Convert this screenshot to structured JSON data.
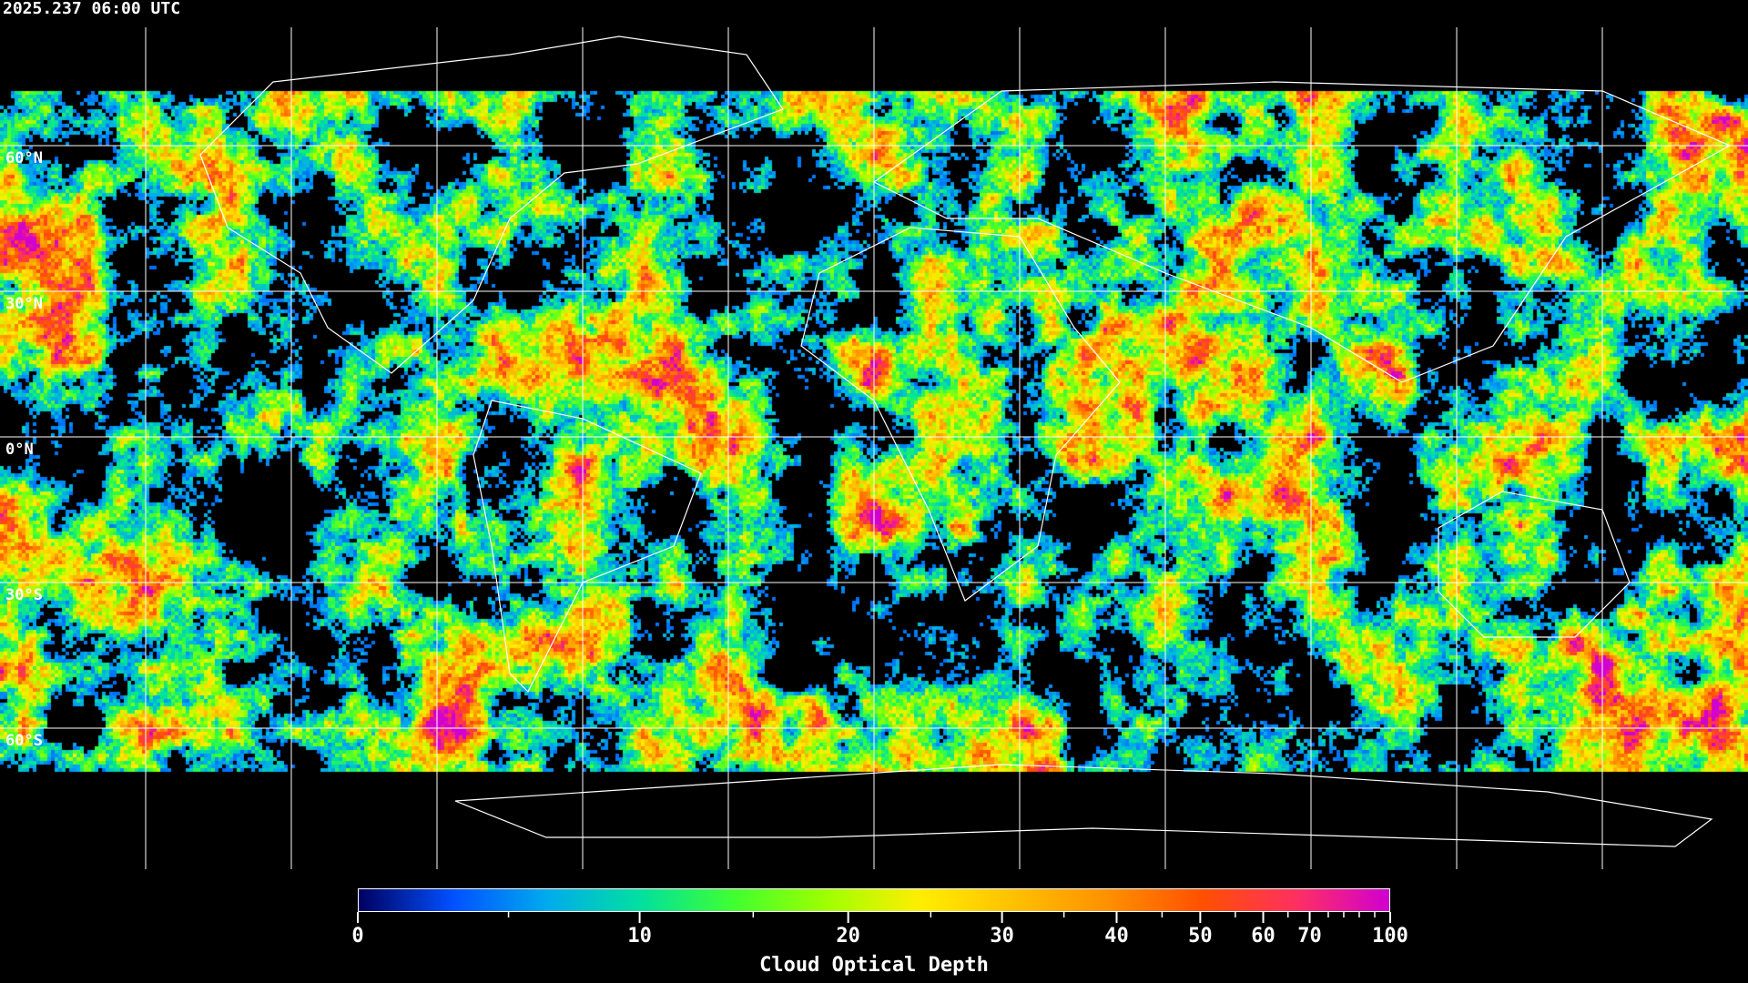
{
  "timestamp": "2025.237 06:00 UTC",
  "lat_labels": [
    "60°N",
    "30°N",
    "0°N",
    "30°S",
    "60°S"
  ],
  "colorbar": {
    "title": "Cloud Optical Depth",
    "tick_labels": [
      "0",
      "10",
      "20",
      "30",
      "40",
      "50",
      "60",
      "70",
      "100"
    ],
    "range": [
      0,
      100
    ],
    "colors": [
      "#000060",
      "#0050ff",
      "#00aaee",
      "#00e0a0",
      "#40ff30",
      "#a0ff00",
      "#ffee00",
      "#ffc000",
      "#ff9000",
      "#ff5000",
      "#ff3060",
      "#d000d0"
    ]
  },
  "colors": {
    "background": "#000000",
    "gridlines": "#ffffff",
    "coastlines": "#ffffff"
  }
}
